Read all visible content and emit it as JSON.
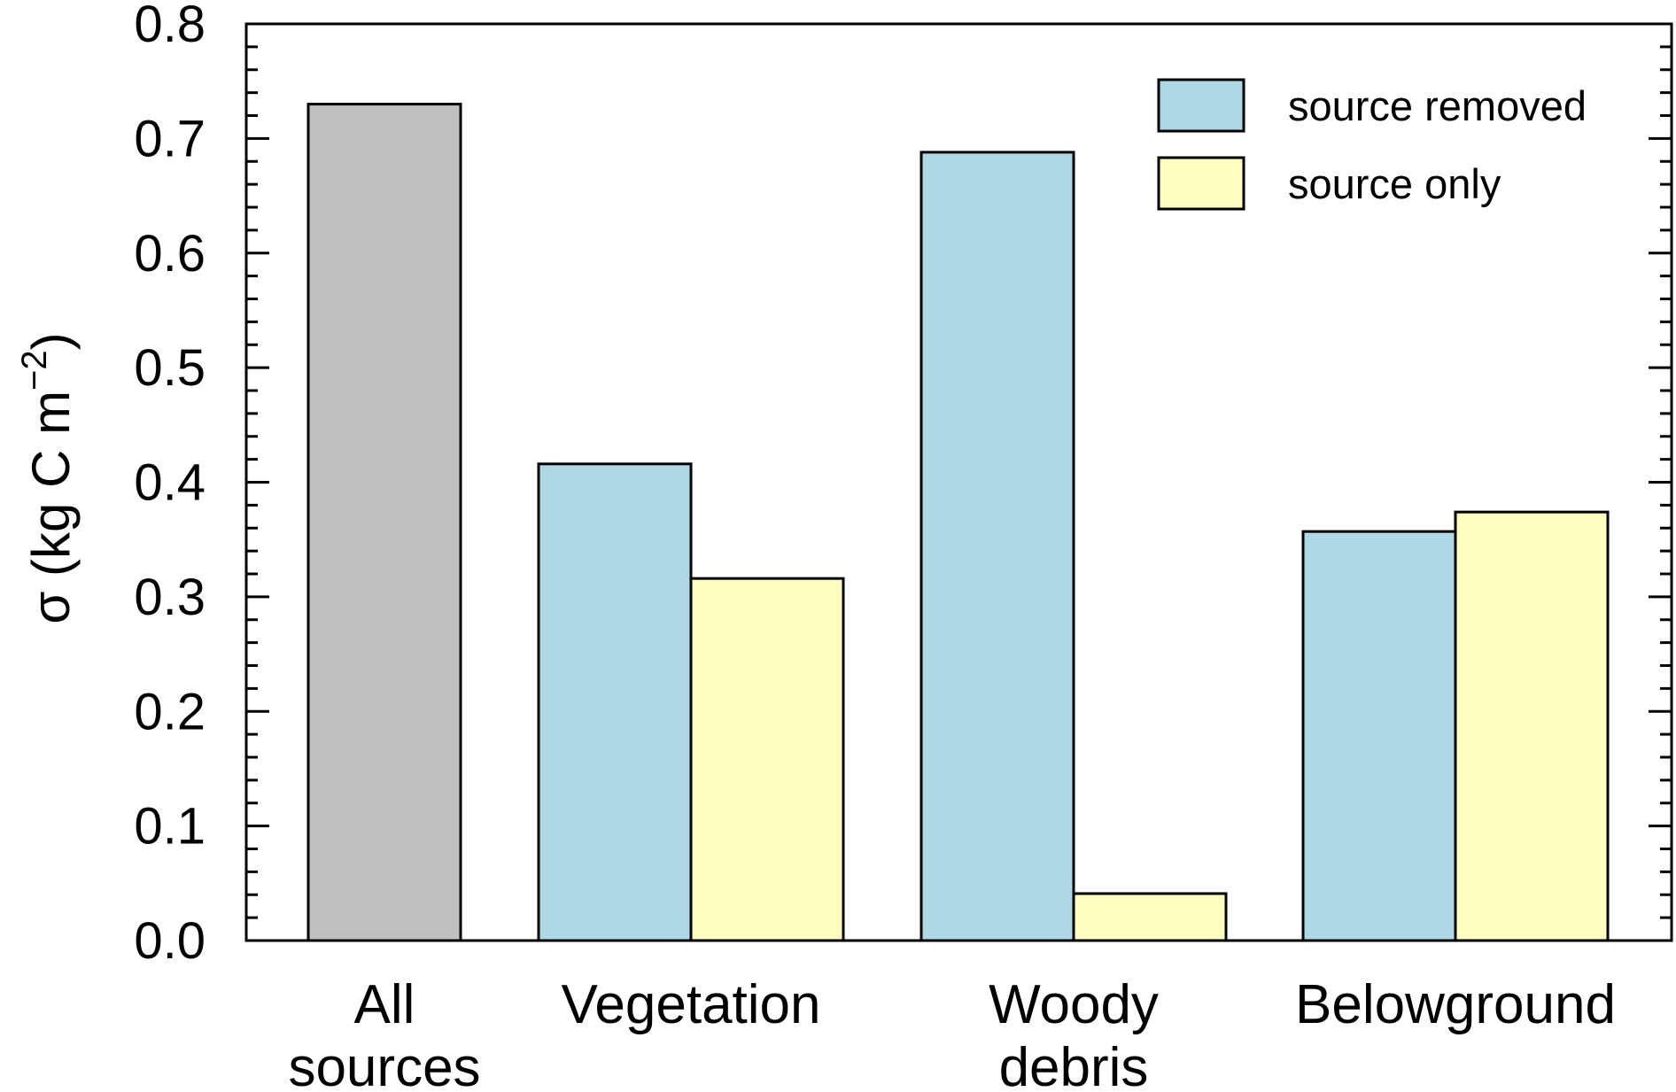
{
  "chart_data": {
    "type": "bar",
    "ylabel": {
      "prefix": "σ (kg C m",
      "superscript": "−2",
      "suffix": ")"
    },
    "ylim": [
      0,
      0.8
    ],
    "yticks": [
      "0.0",
      "0.1",
      "0.2",
      "0.3",
      "0.4",
      "0.5",
      "0.6",
      "0.7",
      "0.8"
    ],
    "categories": [
      {
        "lines": [
          "All",
          "sources"
        ]
      },
      {
        "lines": [
          "Vegetation"
        ]
      },
      {
        "lines": [
          "Woody",
          "debris"
        ]
      },
      {
        "lines": [
          "Belowground"
        ]
      }
    ],
    "series": [
      {
        "name": "",
        "color": "#c0c0c0",
        "values": [
          0.73,
          null,
          null,
          null
        ]
      },
      {
        "name": "source removed",
        "color": "#add8e6",
        "values": [
          null,
          0.416,
          0.688,
          0.357
        ]
      },
      {
        "name": "source only",
        "color": "#ffffc0",
        "values": [
          null,
          0.316,
          0.041,
          0.374
        ]
      }
    ],
    "legend": {
      "placement": "top-right",
      "entries": [
        "source removed",
        "source only"
      ]
    },
    "grid": false
  }
}
